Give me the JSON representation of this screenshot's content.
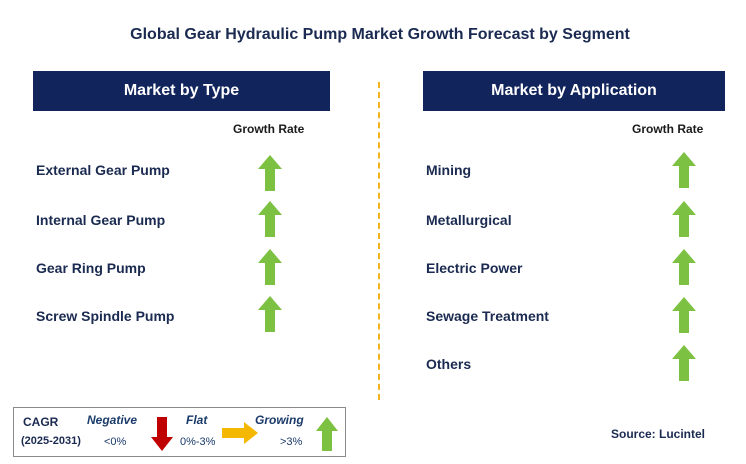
{
  "title": "Global Gear Hydraulic Pump Market Growth Forecast by Segment",
  "left_panel": {
    "header": "Market by Type",
    "growth_header": "Growth Rate",
    "items": [
      {
        "label": "External Gear Pump",
        "trend": "growing"
      },
      {
        "label": "Internal Gear Pump",
        "trend": "growing"
      },
      {
        "label": "Gear Ring Pump",
        "trend": "growing"
      },
      {
        "label": "Screw Spindle Pump",
        "trend": "growing"
      }
    ]
  },
  "right_panel": {
    "header": "Market by Application",
    "growth_header": "Growth Rate",
    "items": [
      {
        "label": "Mining",
        "trend": "growing"
      },
      {
        "label": "Metallurgical",
        "trend": "growing"
      },
      {
        "label": "Electric Power",
        "trend": "growing"
      },
      {
        "label": "Sewage Treatment",
        "trend": "growing"
      },
      {
        "label": "Others",
        "trend": "growing"
      }
    ]
  },
  "legend": {
    "cagr_label": "CAGR",
    "period": "(2025-2031)",
    "negative": {
      "label": "Negative",
      "range": "<0%",
      "icon": "down-arrow-icon",
      "color": "#c00000"
    },
    "flat": {
      "label": "Flat",
      "range": "0%-3%",
      "icon": "right-arrow-icon",
      "color": "#f5b800"
    },
    "growing": {
      "label": "Growing",
      "range": ">3%",
      "icon": "up-arrow-icon",
      "color": "#7cc142"
    }
  },
  "source": "Source: Lucintel",
  "colors": {
    "header_bg": "#12245c",
    "divider": "#f2b21b",
    "up_arrow": "#7cc142"
  }
}
